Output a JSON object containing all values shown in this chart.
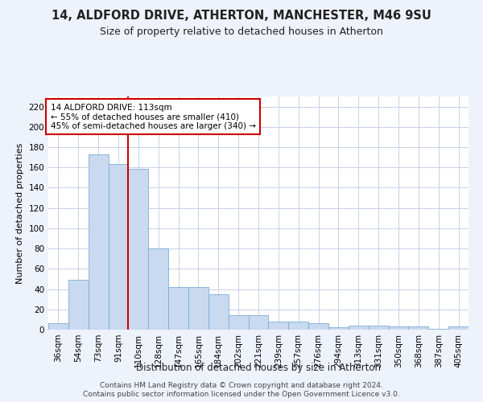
{
  "title": "14, ALDFORD DRIVE, ATHERTON, MANCHESTER, M46 9SU",
  "subtitle": "Size of property relative to detached houses in Atherton",
  "xlabel": "Distribution of detached houses by size in Atherton",
  "ylabel": "Number of detached properties",
  "categories": [
    "36sqm",
    "54sqm",
    "73sqm",
    "91sqm",
    "110sqm",
    "128sqm",
    "147sqm",
    "165sqm",
    "184sqm",
    "202sqm",
    "221sqm",
    "239sqm",
    "257sqm",
    "276sqm",
    "294sqm",
    "313sqm",
    "331sqm",
    "350sqm",
    "368sqm",
    "387sqm",
    "405sqm"
  ],
  "values": [
    6,
    49,
    173,
    163,
    159,
    80,
    42,
    42,
    35,
    14,
    14,
    8,
    8,
    6,
    2,
    4,
    4,
    3,
    3,
    1,
    3
  ],
  "bar_color": "#c9d9f0",
  "bar_edge_color": "#7aadd4",
  "ylim": [
    0,
    230
  ],
  "yticks": [
    0,
    20,
    40,
    60,
    80,
    100,
    120,
    140,
    160,
    180,
    200,
    220
  ],
  "red_line_x": 3.5,
  "red_line_color": "#cc0000",
  "annotation_text": "14 ALDFORD DRIVE: 113sqm\n← 55% of detached houses are smaller (410)\n45% of semi-detached houses are larger (340) →",
  "annotation_box_color": "#ffffff",
  "annotation_box_edge": "#cc0000",
  "footnote1": "Contains HM Land Registry data © Crown copyright and database right 2024.",
  "footnote2": "Contains public sector information licensed under the Open Government Licence v3.0.",
  "bg_color": "#eef2fb",
  "plot_bg_color": "#ffffff",
  "grid_color": "#c8d0e8",
  "title_fontsize": 10.5,
  "subtitle_fontsize": 9,
  "ylabel_fontsize": 8,
  "xlabel_fontsize": 8.5,
  "tick_fontsize": 7.5,
  "annot_fontsize": 7.5,
  "footnote_fontsize": 6.5
}
